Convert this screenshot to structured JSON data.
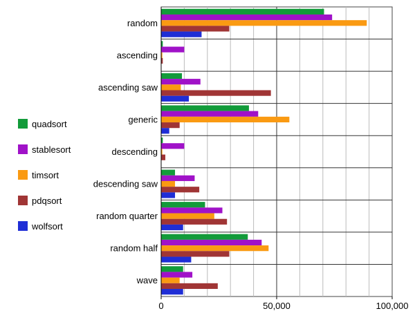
{
  "chart_data": {
    "type": "bar",
    "orientation": "horizontal",
    "categories": [
      "random",
      "ascending",
      "ascending saw",
      "generic",
      "descending",
      "descending saw",
      "random quarter",
      "random half",
      "wave"
    ],
    "series": [
      {
        "name": "quadsort",
        "color": "#129b3a",
        "values": [
          70500,
          700,
          9000,
          38000,
          700,
          6000,
          19000,
          37500,
          9500
        ]
      },
      {
        "name": "stablesort",
        "color": "#a012c8",
        "values": [
          74000,
          10000,
          17000,
          42000,
          10000,
          14500,
          26500,
          43500,
          13500
        ]
      },
      {
        "name": "timsort",
        "color": "#fa9a12",
        "values": [
          89000,
          500,
          8500,
          55500,
          500,
          6000,
          23000,
          46500,
          8000
        ]
      },
      {
        "name": "pdqsort",
        "color": "#a03535",
        "values": [
          29500,
          700,
          47500,
          8000,
          1800,
          16500,
          28500,
          29500,
          24500
        ]
      },
      {
        "name": "wolfsort",
        "color": "#1f2ed6",
        "values": [
          17500,
          0,
          12000,
          3500,
          0,
          6000,
          9500,
          13000,
          9500
        ]
      }
    ],
    "xlim": [
      0,
      100000
    ],
    "x_ticks": [
      0,
      50000,
      100000
    ],
    "x_tick_labels": [
      "0",
      "50,000",
      "100,000"
    ],
    "grid": "vertical",
    "legend": "left"
  }
}
